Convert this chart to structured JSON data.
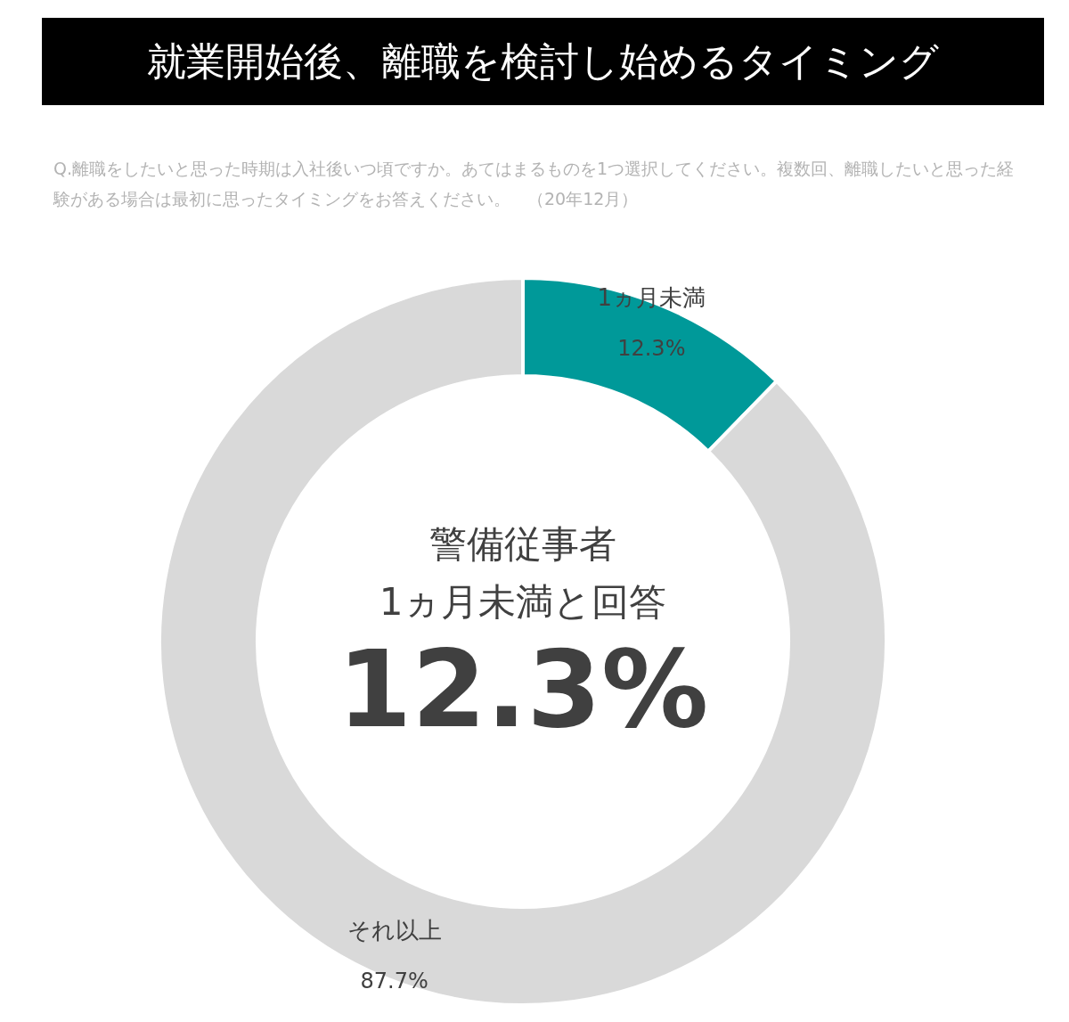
{
  "chart_data": {
    "type": "donut",
    "title": "就業開始後、離職を検討し始めるタイミング",
    "subtitle": "Q.離職をしたいと思った時期は入社後いつ頃ですか。あてはまるものを1つ選択してください。複数回、離職したいと思った経験がある場合は最初に思ったタイミングをお答えください。　（20年12月）",
    "categories": [
      "1ヵ月未満",
      "それ以上"
    ],
    "values": [
      12.3,
      87.7
    ],
    "colors": [
      "#009999",
      "#d9d9d9"
    ],
    "value_labels": [
      "12.3%",
      "87.7%"
    ],
    "annotations": [
      "警備従事者",
      "1ヵ月未満と回答",
      "12.3%"
    ]
  }
}
